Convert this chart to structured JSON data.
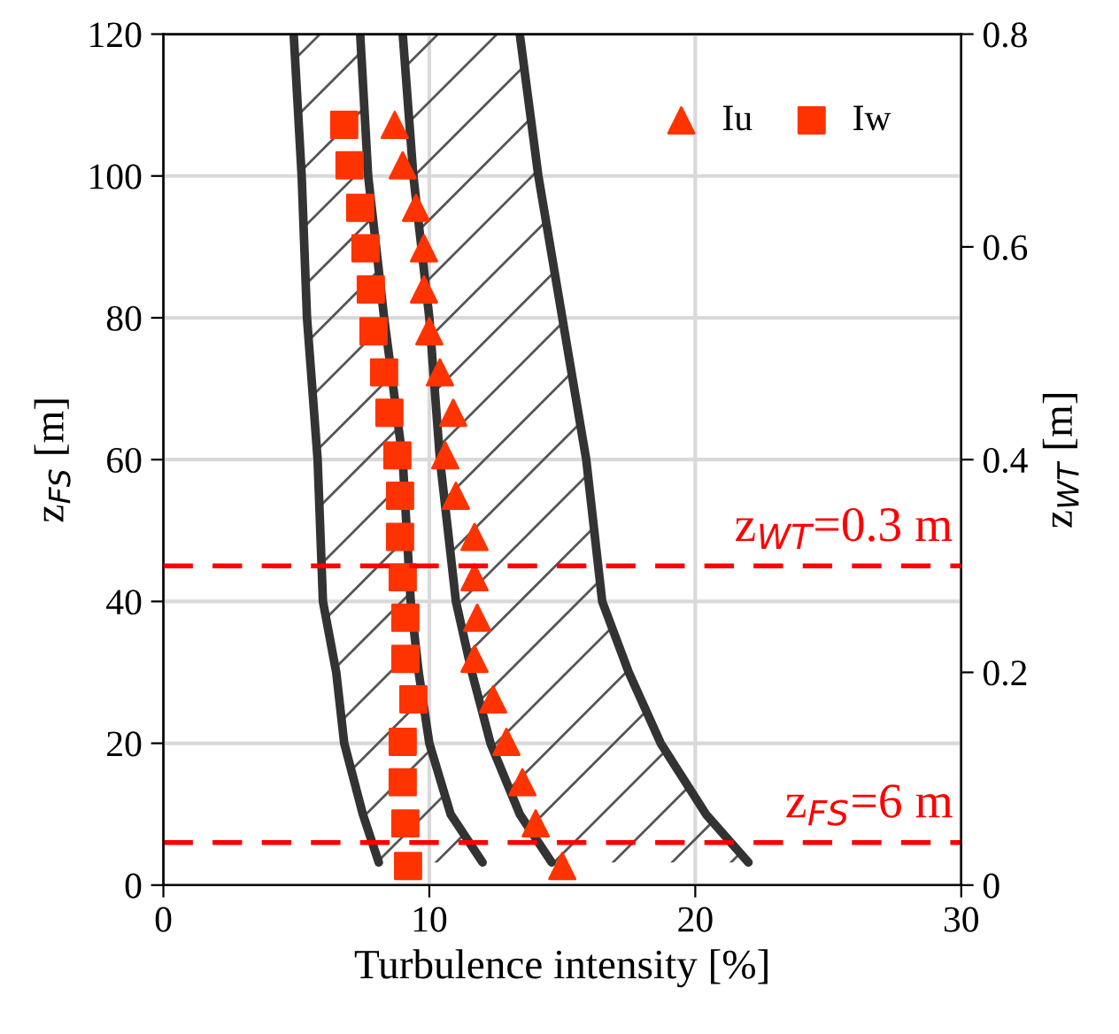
{
  "chart_data": {
    "type": "scatter",
    "xlabel": "Turbulence intensity [%]",
    "ylabel": "z$_{FS}$ [m]",
    "y2label": "z$_{WT}$ [m]",
    "xlim": [
      0,
      30
    ],
    "xticks": [
      0,
      10,
      20,
      30
    ],
    "ylim": [
      0,
      120
    ],
    "yticks": [
      0,
      20,
      40,
      60,
      80,
      100,
      120
    ],
    "y2lim": [
      0,
      0.8
    ],
    "y2ticks": [
      0,
      0.2,
      0.4,
      0.6,
      0.8
    ],
    "grid": true,
    "legend": "top right",
    "series": [
      {
        "type": "line",
        "color": "#333333",
        "marker": "none",
        "x": [
          4.9,
          5.2,
          5.4,
          5.8,
          6.0,
          6.5,
          6.8,
          7.5,
          8.1
        ],
        "values": [
          120,
          100,
          80,
          60,
          40,
          30,
          20,
          10,
          3.2
        ]
      },
      {
        "type": "line",
        "color": "#333333",
        "marker": "none",
        "x": [
          7.4,
          7.7,
          8.3,
          9.0,
          9.3,
          9.6,
          10.0,
          10.8,
          12.0
        ],
        "values": [
          120,
          100,
          80,
          60,
          40,
          30,
          20,
          10,
          3.2
        ]
      },
      {
        "type": "line",
        "color": "#333333",
        "marker": "none",
        "x": [
          9.0,
          9.4,
          10.0,
          10.4,
          11.0,
          11.6,
          12.3,
          13.4,
          14.6
        ],
        "values": [
          120,
          100,
          80,
          60,
          40,
          30,
          20,
          10,
          3.2
        ]
      },
      {
        "type": "line",
        "color": "#333333",
        "marker": "none",
        "x": [
          13.4,
          14.1,
          15.0,
          15.9,
          16.5,
          17.5,
          18.7,
          20.4,
          22.0
        ],
        "values": [
          120,
          100,
          80,
          60,
          40,
          30,
          20,
          10,
          3.2
        ]
      },
      {
        "name": "Iu",
        "marker": "triangle",
        "color": "#ff3300",
        "x": [
          8.7,
          9.0,
          9.5,
          9.8,
          9.8,
          10.0,
          10.4,
          10.9,
          10.6,
          11.0,
          11.7,
          11.7,
          11.8,
          11.7,
          12.4,
          12.9,
          13.5,
          14.0,
          15.0
        ],
        "values": [
          107.2,
          101.5,
          95.5,
          89.8,
          84.0,
          78.1,
          72.3,
          66.6,
          60.6,
          54.9,
          49.1,
          43.4,
          37.7,
          31.9,
          26.2,
          20.2,
          14.5,
          8.7,
          2.7
        ]
      },
      {
        "name": "Iw",
        "marker": "square",
        "color": "#ff3300",
        "x": [
          6.8,
          7.0,
          7.4,
          7.6,
          7.8,
          7.9,
          8.3,
          8.5,
          8.8,
          8.9,
          8.9,
          9.0,
          9.1,
          9.1,
          9.4,
          9.0,
          9.0,
          9.1,
          9.2
        ],
        "values": [
          107.2,
          101.5,
          95.5,
          89.8,
          84.0,
          78.1,
          72.3,
          66.6,
          60.6,
          54.9,
          49.1,
          43.4,
          37.7,
          31.9,
          26.2,
          20.2,
          14.5,
          8.7,
          2.7
        ]
      }
    ],
    "ref_lines": [
      {
        "axis": "y2",
        "value": 0.3,
        "label": "z$_{WT}$=0.3 m",
        "color": "#ff0000",
        "line_style": "dashed"
      },
      {
        "axis": "y",
        "value": 6,
        "label": "z$_{FS}$=6 m",
        "color": "#ff0000",
        "line_style": "dashed"
      }
    ]
  }
}
